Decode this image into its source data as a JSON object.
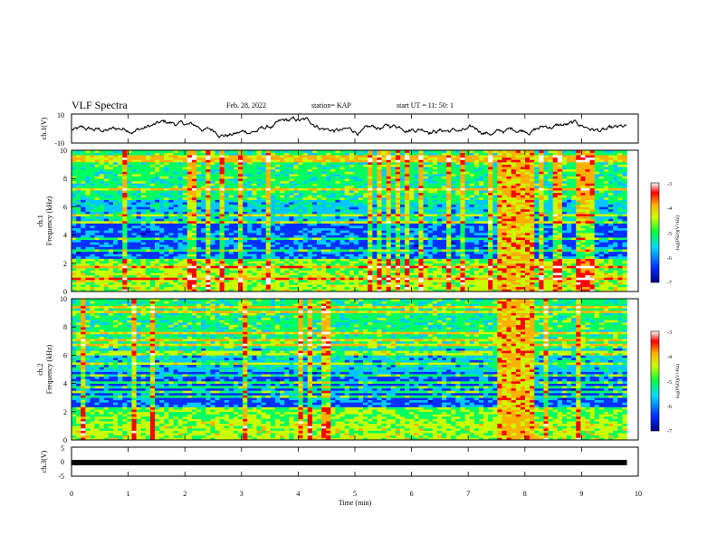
{
  "header": {
    "title": "VLF Spectra",
    "date": "Feb. 28, 2022",
    "station": "station= KAP",
    "start": "start  UT  =   11: 50: 1"
  },
  "chart_data": [
    {
      "type": "line",
      "panel": "waveform-ch1",
      "ylabel": "ch.1(V)",
      "ylim": [
        -10,
        10
      ],
      "yticks": [
        "10",
        "-10"
      ],
      "xlim": [
        0,
        10
      ],
      "color": "#000000"
    },
    {
      "type": "heatmap",
      "panel": "spectrogram-ch1",
      "ylabel": "ch.1 Frequency (kHz)",
      "ylabel_line1": "ch.1",
      "ylabel_line2": "Frequency  (kHz)",
      "ylim": [
        0,
        10
      ],
      "yticks": [
        "0",
        "2",
        "4",
        "6",
        "8",
        "10"
      ],
      "xlim": [
        0,
        10
      ],
      "data_end_min": 9.8,
      "burst_window_min": [
        7.5,
        8.1
      ],
      "colorbar": {
        "range": [
          -7,
          -3
        ],
        "ticks": [
          "-3",
          "-4",
          "-5",
          "-6",
          "-7"
        ],
        "label": "log(PSD)(V²/Hz)"
      }
    },
    {
      "type": "heatmap",
      "panel": "spectrogram-ch2",
      "ylabel": "ch.2 Frequency (kHz)",
      "ylabel_line1": "ch.2",
      "ylabel_line2": "Frequency  (kHz)",
      "ylim": [
        0,
        10
      ],
      "yticks": [
        "0",
        "2",
        "4",
        "6",
        "8",
        "10"
      ],
      "xlim": [
        0,
        10
      ],
      "data_end_min": 9.8,
      "burst_window_min": [
        7.5,
        8.1
      ],
      "colorbar": {
        "range": [
          -7,
          -3
        ],
        "ticks": [
          "-3",
          "-4",
          "-5",
          "-6",
          "-7"
        ],
        "label": "log(PSD)(V²/Hz)"
      }
    },
    {
      "type": "line",
      "panel": "waveform-ch3",
      "ylabel": "ch.3(V)",
      "ylim": [
        -5,
        5
      ],
      "yticks": [
        "5",
        "0",
        "-5"
      ],
      "xlim": [
        0,
        10
      ],
      "level_v": -0.3,
      "color": "#000000"
    }
  ],
  "x_axis": {
    "label": "Time  (min)",
    "ticks": [
      "0",
      "1",
      "2",
      "3",
      "4",
      "5",
      "6",
      "7",
      "8",
      "9",
      "10"
    ],
    "range": [
      0,
      10
    ]
  },
  "colormap": [
    "#0000a8",
    "#0030ff",
    "#00c8ff",
    "#00ff60",
    "#c8ff00",
    "#ffb000",
    "#ff0000",
    "#ffffff"
  ]
}
